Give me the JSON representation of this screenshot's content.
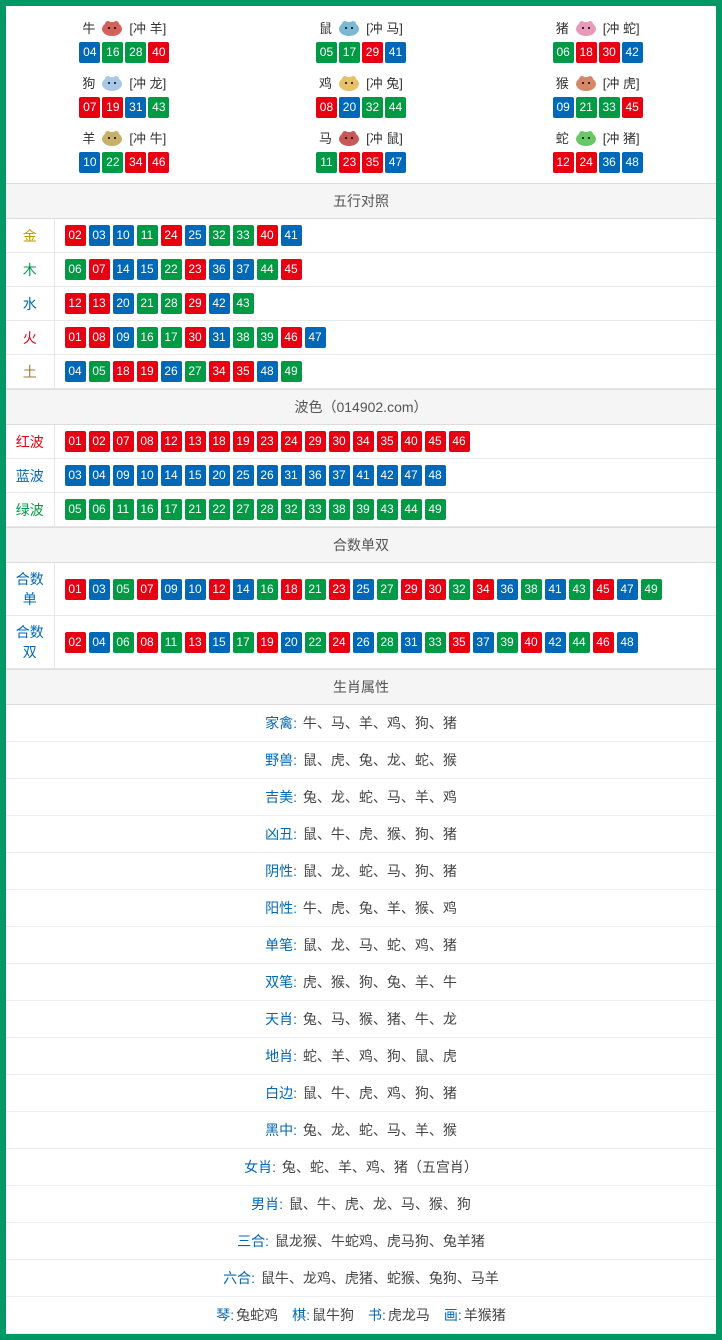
{
  "colors": {
    "red": "#e60012",
    "blue": "#0068b7",
    "green": "#009944",
    "border": "#009966",
    "header_bg": "#f5f5f5",
    "text": "#444"
  },
  "zodiac": [
    {
      "name": "牛",
      "chong": "[冲 羊]",
      "icon": "ox",
      "nums": [
        {
          "v": "04",
          "c": "blue"
        },
        {
          "v": "16",
          "c": "green"
        },
        {
          "v": "28",
          "c": "green"
        },
        {
          "v": "40",
          "c": "red"
        }
      ]
    },
    {
      "name": "鼠",
      "chong": "[冲 马]",
      "icon": "rat",
      "nums": [
        {
          "v": "05",
          "c": "green"
        },
        {
          "v": "17",
          "c": "green"
        },
        {
          "v": "29",
          "c": "red"
        },
        {
          "v": "41",
          "c": "blue"
        }
      ]
    },
    {
      "name": "猪",
      "chong": "[冲 蛇]",
      "icon": "pig",
      "nums": [
        {
          "v": "06",
          "c": "green"
        },
        {
          "v": "18",
          "c": "red"
        },
        {
          "v": "30",
          "c": "red"
        },
        {
          "v": "42",
          "c": "blue"
        }
      ]
    },
    {
      "name": "狗",
      "chong": "[冲 龙]",
      "icon": "dog",
      "nums": [
        {
          "v": "07",
          "c": "red"
        },
        {
          "v": "19",
          "c": "red"
        },
        {
          "v": "31",
          "c": "blue"
        },
        {
          "v": "43",
          "c": "green"
        }
      ]
    },
    {
      "name": "鸡",
      "chong": "[冲 兔]",
      "icon": "rooster",
      "nums": [
        {
          "v": "08",
          "c": "red"
        },
        {
          "v": "20",
          "c": "blue"
        },
        {
          "v": "32",
          "c": "green"
        },
        {
          "v": "44",
          "c": "green"
        }
      ]
    },
    {
      "name": "猴",
      "chong": "[冲 虎]",
      "icon": "monkey",
      "nums": [
        {
          "v": "09",
          "c": "blue"
        },
        {
          "v": "21",
          "c": "green"
        },
        {
          "v": "33",
          "c": "green"
        },
        {
          "v": "45",
          "c": "red"
        }
      ]
    },
    {
      "name": "羊",
      "chong": "[冲 牛]",
      "icon": "goat",
      "nums": [
        {
          "v": "10",
          "c": "blue"
        },
        {
          "v": "22",
          "c": "green"
        },
        {
          "v": "34",
          "c": "red"
        },
        {
          "v": "46",
          "c": "red"
        }
      ]
    },
    {
      "name": "马",
      "chong": "[冲 鼠]",
      "icon": "horse",
      "nums": [
        {
          "v": "11",
          "c": "green"
        },
        {
          "v": "23",
          "c": "red"
        },
        {
          "v": "35",
          "c": "red"
        },
        {
          "v": "47",
          "c": "blue"
        }
      ]
    },
    {
      "name": "蛇",
      "chong": "[冲 猪]",
      "icon": "snake",
      "nums": [
        {
          "v": "12",
          "c": "red"
        },
        {
          "v": "24",
          "c": "red"
        },
        {
          "v": "36",
          "c": "blue"
        },
        {
          "v": "48",
          "c": "blue"
        }
      ]
    }
  ],
  "sections": {
    "wuxing": {
      "title": "五行对照",
      "rows": [
        {
          "label": "金",
          "class": "lbl-gold",
          "nums": [
            {
              "v": "02",
              "c": "red"
            },
            {
              "v": "03",
              "c": "blue"
            },
            {
              "v": "10",
              "c": "blue"
            },
            {
              "v": "11",
              "c": "green"
            },
            {
              "v": "24",
              "c": "red"
            },
            {
              "v": "25",
              "c": "blue"
            },
            {
              "v": "32",
              "c": "green"
            },
            {
              "v": "33",
              "c": "green"
            },
            {
              "v": "40",
              "c": "red"
            },
            {
              "v": "41",
              "c": "blue"
            }
          ]
        },
        {
          "label": "木",
          "class": "lbl-green",
          "nums": [
            {
              "v": "06",
              "c": "green"
            },
            {
              "v": "07",
              "c": "red"
            },
            {
              "v": "14",
              "c": "blue"
            },
            {
              "v": "15",
              "c": "blue"
            },
            {
              "v": "22",
              "c": "green"
            },
            {
              "v": "23",
              "c": "red"
            },
            {
              "v": "36",
              "c": "blue"
            },
            {
              "v": "37",
              "c": "blue"
            },
            {
              "v": "44",
              "c": "green"
            },
            {
              "v": "45",
              "c": "red"
            }
          ]
        },
        {
          "label": "水",
          "class": "lbl-blue",
          "nums": [
            {
              "v": "12",
              "c": "red"
            },
            {
              "v": "13",
              "c": "red"
            },
            {
              "v": "20",
              "c": "blue"
            },
            {
              "v": "21",
              "c": "green"
            },
            {
              "v": "28",
              "c": "green"
            },
            {
              "v": "29",
              "c": "red"
            },
            {
              "v": "42",
              "c": "blue"
            },
            {
              "v": "43",
              "c": "green"
            }
          ]
        },
        {
          "label": "火",
          "class": "lbl-red",
          "nums": [
            {
              "v": "01",
              "c": "red"
            },
            {
              "v": "08",
              "c": "red"
            },
            {
              "v": "09",
              "c": "blue"
            },
            {
              "v": "16",
              "c": "green"
            },
            {
              "v": "17",
              "c": "green"
            },
            {
              "v": "30",
              "c": "red"
            },
            {
              "v": "31",
              "c": "blue"
            },
            {
              "v": "38",
              "c": "green"
            },
            {
              "v": "39",
              "c": "green"
            },
            {
              "v": "46",
              "c": "red"
            },
            {
              "v": "47",
              "c": "blue"
            }
          ]
        },
        {
          "label": "土",
          "class": "lbl-earth",
          "nums": [
            {
              "v": "04",
              "c": "blue"
            },
            {
              "v": "05",
              "c": "green"
            },
            {
              "v": "18",
              "c": "red"
            },
            {
              "v": "19",
              "c": "red"
            },
            {
              "v": "26",
              "c": "blue"
            },
            {
              "v": "27",
              "c": "green"
            },
            {
              "v": "34",
              "c": "red"
            },
            {
              "v": "35",
              "c": "red"
            },
            {
              "v": "48",
              "c": "blue"
            },
            {
              "v": "49",
              "c": "green"
            }
          ]
        }
      ]
    },
    "bose": {
      "title": "波色（014902.com）",
      "rows": [
        {
          "label": "红波",
          "class": "lbl-red",
          "nums": [
            {
              "v": "01",
              "c": "red"
            },
            {
              "v": "02",
              "c": "red"
            },
            {
              "v": "07",
              "c": "red"
            },
            {
              "v": "08",
              "c": "red"
            },
            {
              "v": "12",
              "c": "red"
            },
            {
              "v": "13",
              "c": "red"
            },
            {
              "v": "18",
              "c": "red"
            },
            {
              "v": "19",
              "c": "red"
            },
            {
              "v": "23",
              "c": "red"
            },
            {
              "v": "24",
              "c": "red"
            },
            {
              "v": "29",
              "c": "red"
            },
            {
              "v": "30",
              "c": "red"
            },
            {
              "v": "34",
              "c": "red"
            },
            {
              "v": "35",
              "c": "red"
            },
            {
              "v": "40",
              "c": "red"
            },
            {
              "v": "45",
              "c": "red"
            },
            {
              "v": "46",
              "c": "red"
            }
          ]
        },
        {
          "label": "蓝波",
          "class": "lbl-blue",
          "nums": [
            {
              "v": "03",
              "c": "blue"
            },
            {
              "v": "04",
              "c": "blue"
            },
            {
              "v": "09",
              "c": "blue"
            },
            {
              "v": "10",
              "c": "blue"
            },
            {
              "v": "14",
              "c": "blue"
            },
            {
              "v": "15",
              "c": "blue"
            },
            {
              "v": "20",
              "c": "blue"
            },
            {
              "v": "25",
              "c": "blue"
            },
            {
              "v": "26",
              "c": "blue"
            },
            {
              "v": "31",
              "c": "blue"
            },
            {
              "v": "36",
              "c": "blue"
            },
            {
              "v": "37",
              "c": "blue"
            },
            {
              "v": "41",
              "c": "blue"
            },
            {
              "v": "42",
              "c": "blue"
            },
            {
              "v": "47",
              "c": "blue"
            },
            {
              "v": "48",
              "c": "blue"
            }
          ]
        },
        {
          "label": "绿波",
          "class": "lbl-green",
          "nums": [
            {
              "v": "05",
              "c": "green"
            },
            {
              "v": "06",
              "c": "green"
            },
            {
              "v": "11",
              "c": "green"
            },
            {
              "v": "16",
              "c": "green"
            },
            {
              "v": "17",
              "c": "green"
            },
            {
              "v": "21",
              "c": "green"
            },
            {
              "v": "22",
              "c": "green"
            },
            {
              "v": "27",
              "c": "green"
            },
            {
              "v": "28",
              "c": "green"
            },
            {
              "v": "32",
              "c": "green"
            },
            {
              "v": "33",
              "c": "green"
            },
            {
              "v": "38",
              "c": "green"
            },
            {
              "v": "39",
              "c": "green"
            },
            {
              "v": "43",
              "c": "green"
            },
            {
              "v": "44",
              "c": "green"
            },
            {
              "v": "49",
              "c": "green"
            }
          ]
        }
      ]
    },
    "heshu": {
      "title": "合数单双",
      "rows": [
        {
          "label": "合数单",
          "class": "lbl-blue",
          "nums": [
            {
              "v": "01",
              "c": "red"
            },
            {
              "v": "03",
              "c": "blue"
            },
            {
              "v": "05",
              "c": "green"
            },
            {
              "v": "07",
              "c": "red"
            },
            {
              "v": "09",
              "c": "blue"
            },
            {
              "v": "10",
              "c": "blue"
            },
            {
              "v": "12",
              "c": "red"
            },
            {
              "v": "14",
              "c": "blue"
            },
            {
              "v": "16",
              "c": "green"
            },
            {
              "v": "18",
              "c": "red"
            },
            {
              "v": "21",
              "c": "green"
            },
            {
              "v": "23",
              "c": "red"
            },
            {
              "v": "25",
              "c": "blue"
            },
            {
              "v": "27",
              "c": "green"
            },
            {
              "v": "29",
              "c": "red"
            },
            {
              "v": "30",
              "c": "red"
            },
            {
              "v": "32",
              "c": "green"
            },
            {
              "v": "34",
              "c": "red"
            },
            {
              "v": "36",
              "c": "blue"
            },
            {
              "v": "38",
              "c": "green"
            },
            {
              "v": "41",
              "c": "blue"
            },
            {
              "v": "43",
              "c": "green"
            },
            {
              "v": "45",
              "c": "red"
            },
            {
              "v": "47",
              "c": "blue"
            },
            {
              "v": "49",
              "c": "green"
            }
          ]
        },
        {
          "label": "合数双",
          "class": "lbl-blue",
          "nums": [
            {
              "v": "02",
              "c": "red"
            },
            {
              "v": "04",
              "c": "blue"
            },
            {
              "v": "06",
              "c": "green"
            },
            {
              "v": "08",
              "c": "red"
            },
            {
              "v": "11",
              "c": "green"
            },
            {
              "v": "13",
              "c": "red"
            },
            {
              "v": "15",
              "c": "blue"
            },
            {
              "v": "17",
              "c": "green"
            },
            {
              "v": "19",
              "c": "red"
            },
            {
              "v": "20",
              "c": "blue"
            },
            {
              "v": "22",
              "c": "green"
            },
            {
              "v": "24",
              "c": "red"
            },
            {
              "v": "26",
              "c": "blue"
            },
            {
              "v": "28",
              "c": "green"
            },
            {
              "v": "31",
              "c": "blue"
            },
            {
              "v": "33",
              "c": "green"
            },
            {
              "v": "35",
              "c": "red"
            },
            {
              "v": "37",
              "c": "blue"
            },
            {
              "v": "39",
              "c": "green"
            },
            {
              "v": "40",
              "c": "red"
            },
            {
              "v": "42",
              "c": "blue"
            },
            {
              "v": "44",
              "c": "green"
            },
            {
              "v": "46",
              "c": "red"
            },
            {
              "v": "48",
              "c": "blue"
            }
          ]
        }
      ]
    },
    "shengxiao": {
      "title": "生肖属性",
      "rows": [
        {
          "label": "家禽:",
          "text": "牛、马、羊、鸡、狗、猪"
        },
        {
          "label": "野兽:",
          "text": "鼠、虎、兔、龙、蛇、猴"
        },
        {
          "label": "吉美:",
          "text": "兔、龙、蛇、马、羊、鸡"
        },
        {
          "label": "凶丑:",
          "text": "鼠、牛、虎、猴、狗、猪"
        },
        {
          "label": "阴性:",
          "text": "鼠、龙、蛇、马、狗、猪"
        },
        {
          "label": "阳性:",
          "text": "牛、虎、兔、羊、猴、鸡"
        },
        {
          "label": "单笔:",
          "text": "鼠、龙、马、蛇、鸡、猪"
        },
        {
          "label": "双笔:",
          "text": "虎、猴、狗、兔、羊、牛"
        },
        {
          "label": "天肖:",
          "text": "兔、马、猴、猪、牛、龙"
        },
        {
          "label": "地肖:",
          "text": "蛇、羊、鸡、狗、鼠、虎"
        },
        {
          "label": "白边:",
          "text": "鼠、牛、虎、鸡、狗、猪"
        },
        {
          "label": "黑中:",
          "text": "兔、龙、蛇、马、羊、猴"
        },
        {
          "label": "女肖:",
          "text": "兔、蛇、羊、鸡、猪（五宫肖）"
        },
        {
          "label": "男肖:",
          "text": "鼠、牛、虎、龙、马、猴、狗"
        },
        {
          "label": "三合:",
          "text": "鼠龙猴、牛蛇鸡、虎马狗、兔羊猪"
        },
        {
          "label": "六合:",
          "text": "鼠牛、龙鸡、虎猪、蛇猴、兔狗、马羊"
        }
      ],
      "footer_parts": [
        {
          "k": "琴:",
          "v": "兔蛇鸡"
        },
        {
          "k": "棋:",
          "v": "鼠牛狗"
        },
        {
          "k": "书:",
          "v": "虎龙马"
        },
        {
          "k": "画:",
          "v": "羊猴猪"
        }
      ]
    }
  },
  "icon_colors": {
    "ox": "#d4615b",
    "rat": "#7ab8d4",
    "pig": "#e89bb8",
    "dog": "#a8c8e8",
    "rooster": "#e8c068",
    "monkey": "#d48868",
    "goat": "#c8b068",
    "horse": "#c85858",
    "snake": "#68c868"
  }
}
